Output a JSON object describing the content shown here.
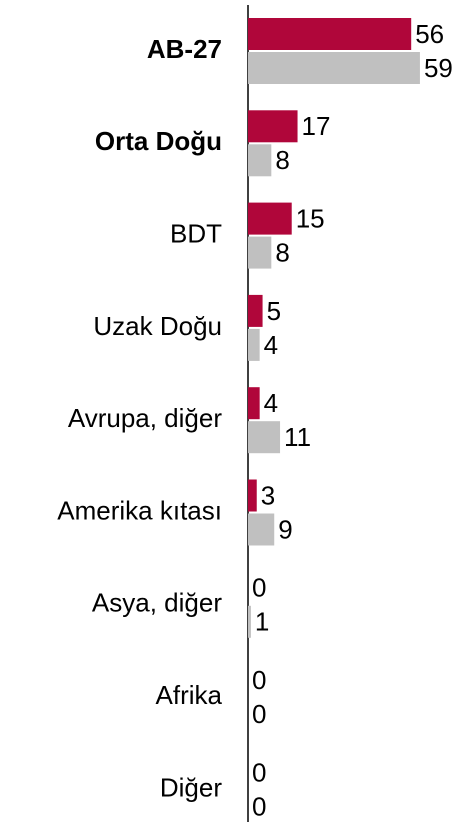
{
  "chart_data": {
    "type": "hbar",
    "categories": [
      "AB-27",
      "Orta Doğu",
      "BDT",
      "Uzak Doğu",
      "Avrupa, diğer",
      "Amerika kıtası",
      "Asya, diğer",
      "Afrika",
      "Diğer"
    ],
    "series": [
      {
        "color": "#b0063a",
        "values": [
          56,
          17,
          15,
          5,
          4,
          3,
          0,
          0,
          0
        ]
      },
      {
        "color": "#c0c0c0",
        "values": [
          59,
          8,
          8,
          4,
          11,
          9,
          1,
          0,
          0
        ]
      }
    ],
    "xlim": [
      0,
      70
    ]
  }
}
